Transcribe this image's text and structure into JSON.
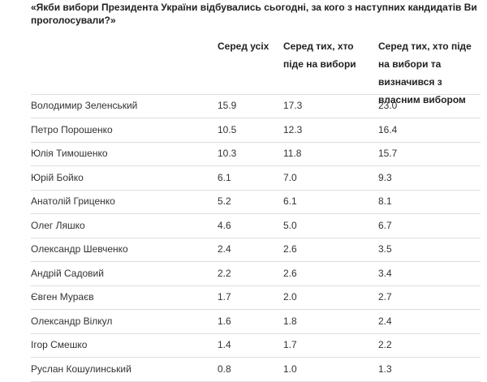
{
  "title": "«Якби вибори Президента України відбувались сьогодні, за кого з наступних кандидатів Ви проголосували?»",
  "table": {
    "header": [
      "Серед усіх",
      "Серед тих, хто піде на вибори",
      "Серед тих, хто піде на вибори та визначився з власним вибором"
    ],
    "rows": [
      [
        "Володимир Зеленський",
        "15.9",
        "17.3",
        "23.0"
      ],
      [
        "Петро Порошенко",
        "10.5",
        "12.3",
        "16.4"
      ],
      [
        "Юлія Тимошенко",
        "10.3",
        "11.8",
        "15.7"
      ],
      [
        "Юрій Бойко",
        "6.1",
        "7.0",
        "9.3"
      ],
      [
        "Анатолій Гриценко",
        "5.2",
        "6.1",
        "8.1"
      ],
      [
        "Олег Ляшко",
        "4.6",
        "5.0",
        "6.7"
      ],
      [
        "Олександр Шевченко",
        "2.4",
        "2.6",
        "3.5"
      ],
      [
        "Андрій Садовий",
        "2.2",
        "2.6",
        "3.4"
      ],
      [
        "Євген Мураєв",
        "1.7",
        "2.0",
        "2.7"
      ],
      [
        "Олександр Вілкул",
        "1.6",
        "1.8",
        "2.4"
      ],
      [
        "Ігор Смешко",
        "1.4",
        "1.7",
        "2.2"
      ],
      [
        "Руслан Кошулинський",
        "0.8",
        "1.0",
        "1.3"
      ]
    ]
  }
}
